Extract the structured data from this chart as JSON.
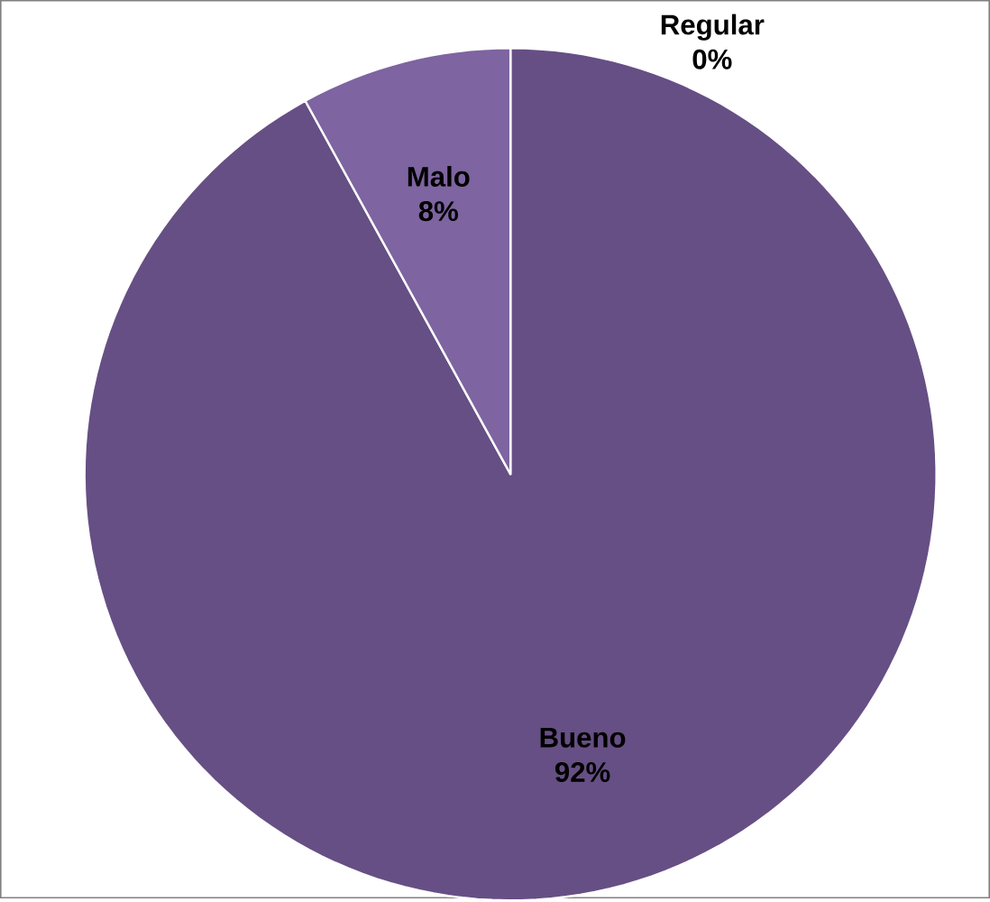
{
  "chart_data": {
    "type": "pie",
    "categories": [
      "Regular",
      "Bueno",
      "Malo"
    ],
    "values": [
      0,
      92,
      8
    ],
    "colors": [
      "#5b4675",
      "#664f84",
      "#7e64a0"
    ],
    "value_labels": [
      "0%",
      "92%",
      "8%"
    ]
  }
}
